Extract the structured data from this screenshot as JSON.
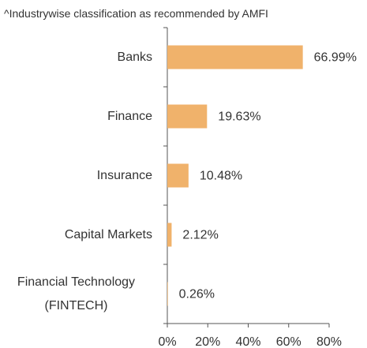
{
  "chart_data": {
    "type": "hbar",
    "subtitle": "^Industrywise classification as recommended by AMFI",
    "categories": [
      "Banks",
      "Finance",
      "Insurance",
      "Capital Markets",
      "Financial Technology (FINTECH)"
    ],
    "values": [
      66.99,
      19.63,
      10.48,
      2.12,
      0.26
    ],
    "value_labels": [
      "66.99%",
      "19.63%",
      "10.48%",
      "2.12%",
      "0.26%"
    ],
    "color": "#f0b26b",
    "xlim": [
      0,
      80
    ],
    "xticks": [
      {
        "value": 0,
        "label": "0%"
      },
      {
        "value": 20,
        "label": "20%"
      },
      {
        "value": 40,
        "label": "40%"
      },
      {
        "value": 60,
        "label": "60%"
      },
      {
        "value": 80,
        "label": "80%"
      }
    ]
  }
}
